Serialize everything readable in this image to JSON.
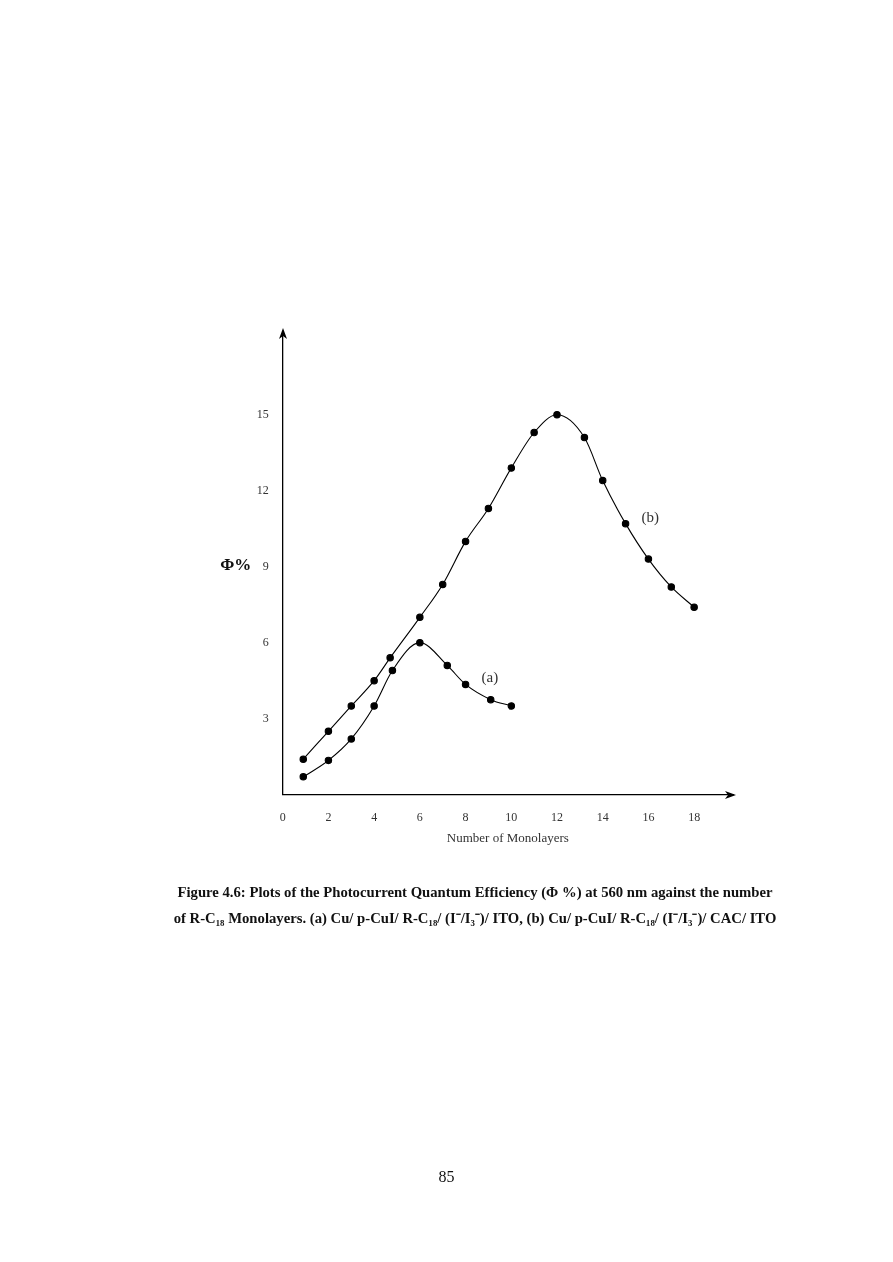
{
  "chart_data": {
    "type": "line",
    "xlabel": "Number of Monolayers",
    "ylabel": "Φ%",
    "xlim": [
      0,
      19.7
    ],
    "ylim": [
      0,
      18.3
    ],
    "xticks": [
      0,
      2,
      4,
      6,
      8,
      10,
      12,
      14,
      16,
      18
    ],
    "yticks": [
      3,
      6,
      9,
      12,
      15
    ],
    "grid": false,
    "legend": false,
    "marker": "circle",
    "line_style": "solid",
    "series": [
      {
        "name": "(a)",
        "color": "#000000",
        "x": [
          0.9,
          2,
          3,
          4,
          4.8,
          6,
          7.2,
          8,
          9.1,
          10
        ],
        "values": [
          0.7,
          1.35,
          2.2,
          3.5,
          4.9,
          6.0,
          5.1,
          4.35,
          3.75,
          3.5
        ]
      },
      {
        "name": "(b)",
        "color": "#000000",
        "x": [
          0.9,
          2,
          3,
          4,
          4.7,
          6,
          7,
          8,
          9,
          10,
          11,
          12,
          13.2,
          14,
          15,
          16,
          17,
          18
        ],
        "values": [
          1.4,
          2.5,
          3.5,
          4.5,
          5.4,
          7.0,
          8.3,
          10.0,
          11.3,
          12.9,
          14.3,
          15.0,
          14.1,
          12.4,
          10.7,
          9.3,
          8.2,
          7.4
        ]
      }
    ],
    "annotations": [
      "Figure 4.6: Plots of the Photocurrent Quantum Efficiency (Φ %) at 560 nm against the number of R-C₁₈ Monolayers. (a) Cu/ p-CuI/ R-C₁₈/ (I⁻/I₃⁻)/ ITO, (b) Cu/ p-CuI/ R-C₁₈/ (I⁻/I₃⁻)/ CAC/ ITO",
      "85"
    ]
  }
}
